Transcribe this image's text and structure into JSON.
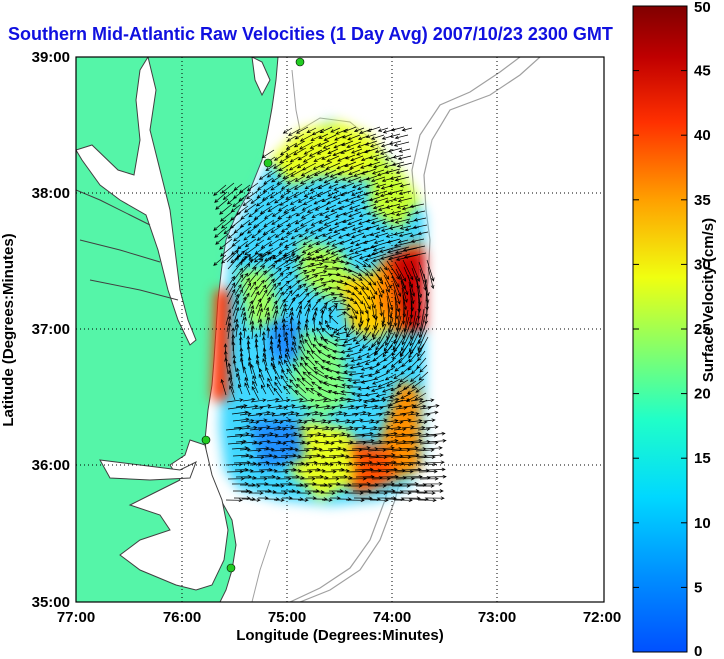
{
  "title": "Southern Mid-Atlantic Raw Velocities (1 Day Avg) 2007/10/23 2300 GMT",
  "chart_data": {
    "type": "heatmap",
    "subtype": "surface current vector map",
    "title": "Southern Mid-Atlantic Raw Velocities (1 Day Avg) 2007/10/23 2300 GMT",
    "xlabel": "Longitude (Degrees:Minutes)",
    "ylabel": "Latitude (Degrees:Minutes)",
    "x_ticks": [
      "77:00",
      "76:00",
      "75:00",
      "74:00",
      "73:00",
      "72:00"
    ],
    "y_ticks": [
      "39:00",
      "38:00",
      "37:00",
      "36:00",
      "35:00"
    ],
    "xlim": [
      -77,
      -72
    ],
    "ylim": [
      35,
      39
    ],
    "grid": true,
    "colorbar": {
      "label": "Surface Velocity (cm/s)",
      "range": [
        0,
        50
      ],
      "ticks": [
        0,
        5,
        10,
        15,
        20,
        25,
        30,
        35,
        40,
        45,
        50
      ],
      "colormap": "jet"
    },
    "colors": {
      "land": "#55f5a8",
      "coast_line": "#404040",
      "title": "#1010e0",
      "station": "#22cc22",
      "arrow": "#000000",
      "bathymetry": "#a0a0a0"
    }
  }
}
